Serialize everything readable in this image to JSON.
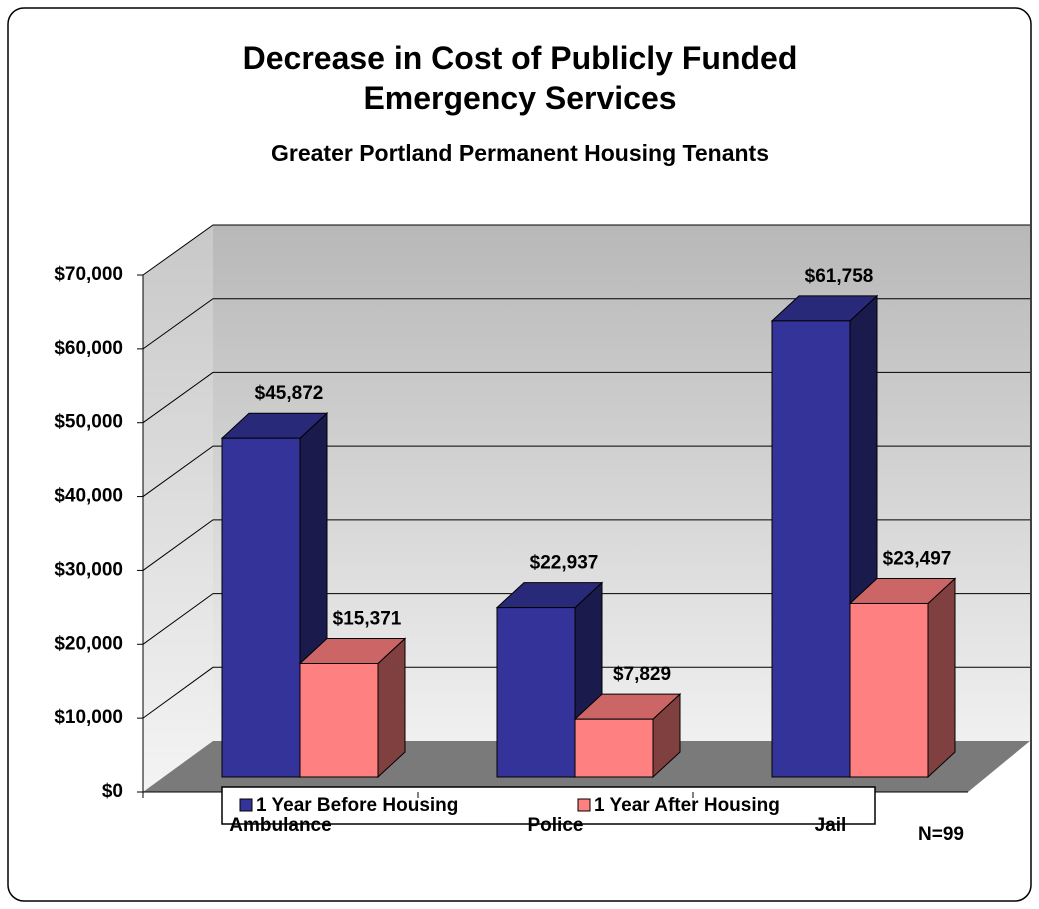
{
  "chart_data": {
    "type": "bar3d",
    "title": "Decrease in Cost of Publicly Funded Emergency Services",
    "subtitle": "Greater Portland Permanent Housing Tenants",
    "annotation": "N=99",
    "categories": [
      "Ambulance",
      "Police",
      "Jail"
    ],
    "series": [
      {
        "name": "1 Year Before Housing",
        "color": "#333399",
        "values": [
          45872,
          22937,
          61758
        ],
        "value_labels": [
          "$45,872",
          "$22,937",
          "$61,758"
        ]
      },
      {
        "name": "1 Year After Housing",
        "color": "#ff8080",
        "values": [
          15371,
          7829,
          23497
        ],
        "value_labels": [
          "$15,371",
          "$7,829",
          "$23,497"
        ]
      }
    ],
    "ylim": [
      0,
      70000
    ],
    "yticks": [
      {
        "value": 0,
        "label": "$0"
      },
      {
        "value": 10000,
        "label": "$10,000"
      },
      {
        "value": 20000,
        "label": "$20,000"
      },
      {
        "value": 30000,
        "label": "$30,000"
      },
      {
        "value": 40000,
        "label": "$40,000"
      },
      {
        "value": 50000,
        "label": "$50,000"
      },
      {
        "value": 60000,
        "label": "$60,000"
      },
      {
        "value": 70000,
        "label": "$70,000"
      }
    ],
    "grid": true,
    "legend": "bottom"
  }
}
